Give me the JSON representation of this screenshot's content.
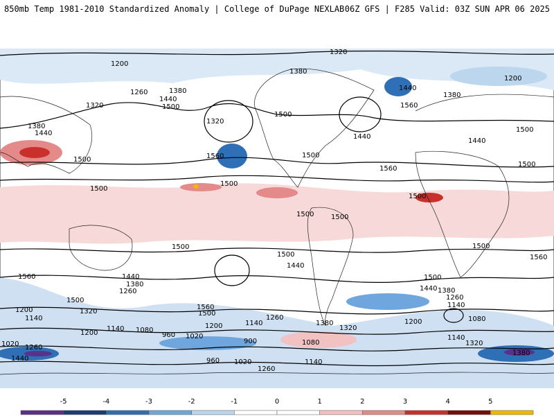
{
  "header": {
    "title": "850mb Temp 1981-2010 Standardized Anomaly | College of DuPage NEXLAB",
    "run_info": "06Z GFS | F285 Valid: 03Z SUN APR 06 2025"
  },
  "colorbar": {
    "ticks": [
      "-5",
      "-4",
      "-3",
      "-2",
      "-1",
      "0",
      "1",
      "2",
      "3",
      "4",
      "5"
    ],
    "colors": [
      "#5b2f8c",
      "#1f3b73",
      "#2f6fb5",
      "#6fa6dd",
      "#bcd6ee",
      "#ffffff",
      "#ffffff",
      "#f2c1c1",
      "#e48a8a",
      "#c9302c",
      "#7a0b0b",
      "#f2b800"
    ]
  },
  "contour_labels": {
    "values": [
      "1200",
      "1260",
      "1320",
      "1380",
      "1440",
      "1500",
      "1560",
      "1140",
      "1080",
      "1020",
      "960",
      "900"
    ]
  },
  "map_labels": [
    {
      "text": "1320",
      "id": "c01"
    },
    {
      "text": "1200",
      "id": "c02"
    },
    {
      "text": "1380",
      "id": "c03"
    },
    {
      "text": "1440",
      "id": "c04"
    },
    {
      "text": "1200",
      "id": "c05"
    },
    {
      "text": "1260",
      "id": "c06"
    },
    {
      "text": "1380",
      "id": "c07"
    },
    {
      "text": "1440",
      "id": "c08"
    },
    {
      "text": "1500",
      "id": "c09"
    },
    {
      "text": "1320",
      "id": "c10"
    },
    {
      "text": "1320",
      "id": "c11"
    },
    {
      "text": "1380",
      "id": "c12"
    },
    {
      "text": "1440",
      "id": "c13"
    },
    {
      "text": "1500",
      "id": "c14"
    },
    {
      "text": "1560",
      "id": "c15"
    },
    {
      "text": "1500",
      "id": "c16"
    },
    {
      "text": "1500",
      "id": "c17"
    },
    {
      "text": "1500",
      "id": "c18"
    },
    {
      "text": "1500",
      "id": "c19"
    },
    {
      "text": "1500",
      "id": "c20"
    },
    {
      "text": "1380",
      "id": "c21"
    },
    {
      "text": "1440",
      "id": "c22"
    },
    {
      "text": "1560",
      "id": "c23"
    },
    {
      "text": "1560",
      "id": "c24"
    },
    {
      "text": "1500",
      "id": "c25"
    },
    {
      "text": "1440",
      "id": "c26"
    },
    {
      "text": "1500",
      "id": "c27"
    },
    {
      "text": "1500",
      "id": "c28"
    },
    {
      "text": "1500",
      "id": "c29"
    },
    {
      "text": "1500",
      "id": "c30"
    },
    {
      "text": "1500",
      "id": "c31"
    },
    {
      "text": "1560",
      "id": "c32"
    },
    {
      "text": "1440",
      "id": "c33"
    },
    {
      "text": "1380",
      "id": "c34"
    },
    {
      "text": "1260",
      "id": "c35"
    },
    {
      "text": "1500",
      "id": "c36"
    },
    {
      "text": "1320",
      "id": "c37"
    },
    {
      "text": "1200",
      "id": "c38"
    },
    {
      "text": "1140",
      "id": "c39"
    },
    {
      "text": "1560",
      "id": "c40"
    },
    {
      "text": "1500",
      "id": "c41"
    },
    {
      "text": "1440",
      "id": "c42"
    },
    {
      "text": "1500",
      "id": "c43"
    },
    {
      "text": "1500",
      "id": "c44"
    },
    {
      "text": "1440",
      "id": "c45"
    },
    {
      "text": "1380",
      "id": "c46"
    },
    {
      "text": "1260",
      "id": "c47"
    },
    {
      "text": "1140",
      "id": "c48"
    },
    {
      "text": "1080",
      "id": "c49"
    },
    {
      "text": "1200",
      "id": "c50"
    },
    {
      "text": "1560",
      "id": "c51"
    },
    {
      "text": "1200",
      "id": "c52"
    },
    {
      "text": "1140",
      "id": "c53"
    },
    {
      "text": "1260",
      "id": "c54"
    },
    {
      "text": "1380",
      "id": "c55"
    },
    {
      "text": "1320",
      "id": "c56"
    },
    {
      "text": "1200",
      "id": "c57"
    },
    {
      "text": "1140",
      "id": "c58"
    },
    {
      "text": "1080",
      "id": "c59"
    },
    {
      "text": "960",
      "id": "c60"
    },
    {
      "text": "1020",
      "id": "c61"
    },
    {
      "text": "900",
      "id": "c62"
    },
    {
      "text": "1080",
      "id": "c63"
    },
    {
      "text": "1140",
      "id": "c64"
    },
    {
      "text": "1320",
      "id": "c65"
    },
    {
      "text": "1380",
      "id": "c66"
    },
    {
      "text": "1020",
      "id": "c67"
    },
    {
      "text": "1260",
      "id": "c68"
    },
    {
      "text": "1440",
      "id": "c69"
    },
    {
      "text": "960",
      "id": "c70"
    },
    {
      "text": "1020",
      "id": "c71"
    },
    {
      "text": "1140",
      "id": "c72"
    },
    {
      "text": "1260",
      "id": "c73"
    }
  ]
}
